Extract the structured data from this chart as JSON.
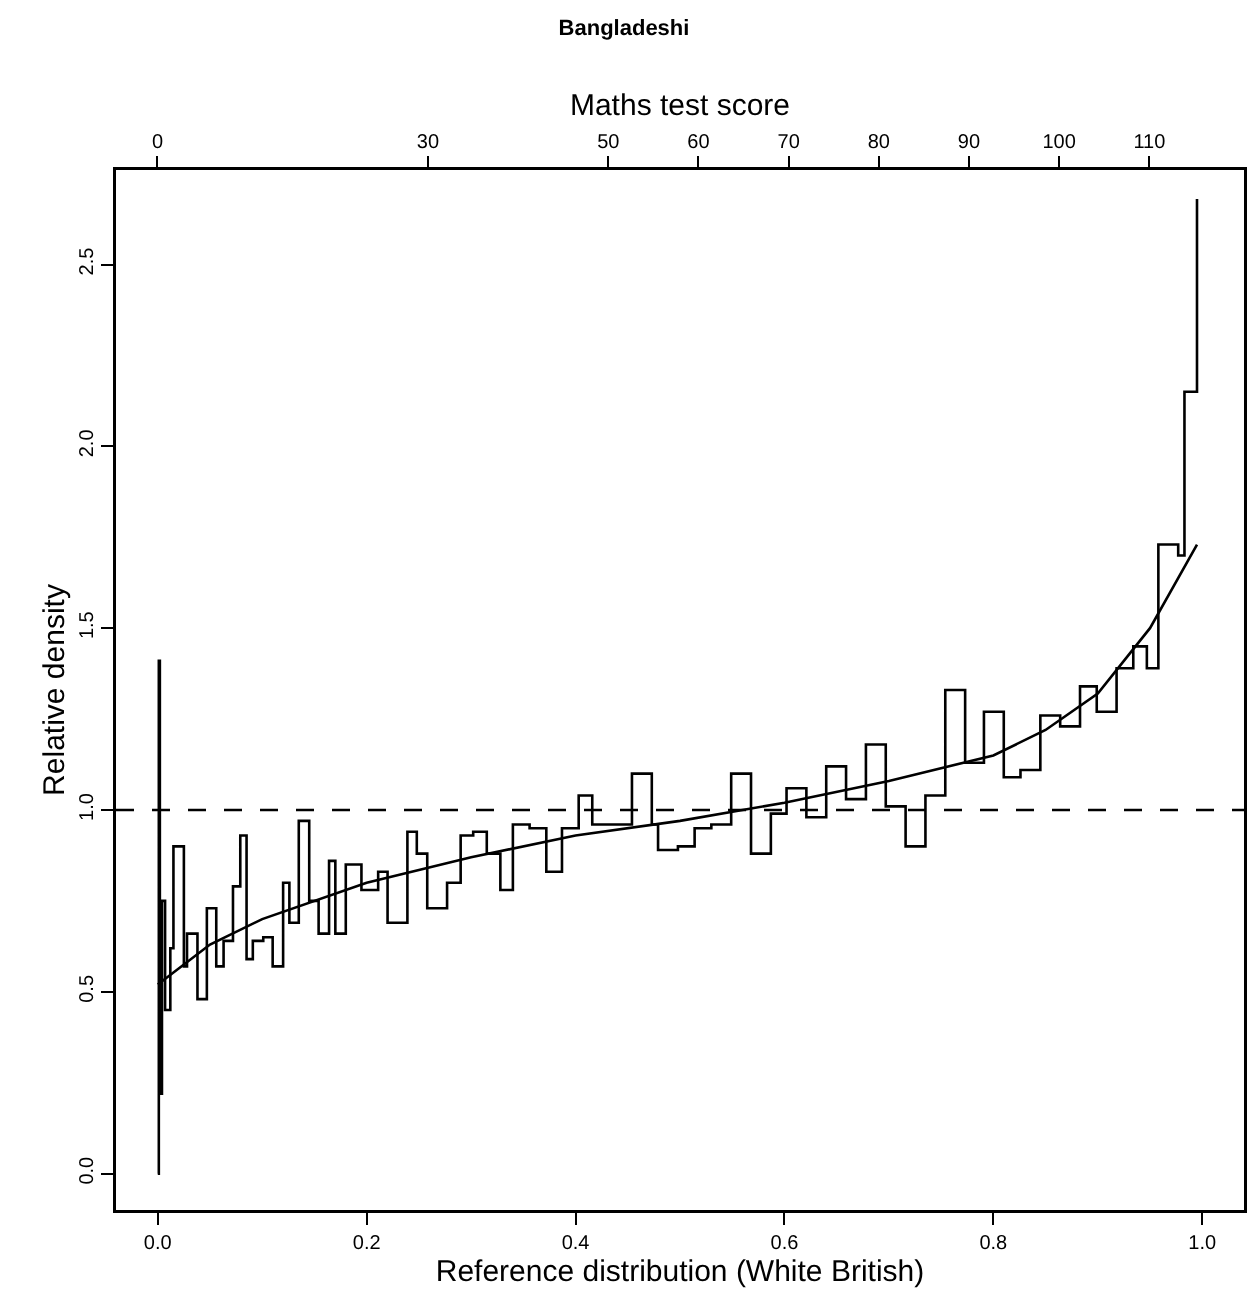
{
  "chart_data": {
    "type": "line",
    "title": "Bangladeshi",
    "xlabel": "Reference distribution (White British)",
    "ylabel": "Relative density",
    "x2label": "Maths test score",
    "xlim": [
      -0.04,
      1.04
    ],
    "ylim": [
      -0.1,
      2.76
    ],
    "xticks": [
      {
        "value": 0,
        "label": "0.0"
      },
      {
        "value": 0.2,
        "label": "0.2"
      },
      {
        "value": 0.4,
        "label": "0.4"
      },
      {
        "value": 0.6,
        "label": "0.6"
      },
      {
        "value": 0.8,
        "label": "0.8"
      },
      {
        "value": 1,
        "label": "1.0"
      }
    ],
    "yticks": [
      {
        "value": 0,
        "label": "0.0"
      },
      {
        "value": 0.5,
        "label": "0.5"
      },
      {
        "value": 1,
        "label": "1.0"
      },
      {
        "value": 1.5,
        "label": "1.5"
      },
      {
        "value": 2,
        "label": "2.0"
      },
      {
        "value": 2.5,
        "label": "2.5"
      }
    ],
    "x2lim": [
      -4.6,
      120.5
    ],
    "x2ticks": [
      0,
      30,
      50,
      60,
      70,
      80,
      90,
      100,
      110
    ],
    "grid": false,
    "series": [
      {
        "type": "step",
        "color": "#000000",
        "x": [
          0,
          0.001,
          0.002,
          0.004,
          0.007,
          0.012,
          0.015,
          0.025,
          0.028,
          0.038,
          0.047,
          0.056,
          0.063,
          0.072,
          0.079,
          0.085,
          0.091,
          0.101,
          0.11,
          0.12,
          0.126,
          0.135,
          0.145,
          0.154,
          0.164,
          0.17,
          0.18,
          0.195,
          0.211,
          0.22,
          0.239,
          0.248,
          0.258,
          0.277,
          0.29,
          0.302,
          0.315,
          0.328,
          0.34,
          0.356,
          0.372,
          0.387,
          0.403,
          0.416,
          0.441,
          0.454,
          0.473,
          0.479,
          0.498,
          0.514,
          0.53,
          0.549,
          0.568,
          0.587,
          0.602,
          0.621,
          0.64,
          0.659,
          0.678,
          0.697,
          0.716,
          0.735,
          0.754,
          0.773,
          0.791,
          0.81,
          0.826,
          0.845,
          0.864,
          0.883,
          0.899,
          0.918,
          0.934,
          0.947,
          0.958,
          0.977,
          0.983,
          0.995
        ],
        "values": [
          0,
          1.41,
          0.22,
          0.75,
          0.45,
          0.62,
          0.9,
          0.57,
          0.66,
          0.48,
          0.73,
          0.57,
          0.64,
          0.79,
          0.93,
          0.59,
          0.64,
          0.65,
          0.57,
          0.8,
          0.69,
          0.97,
          0.75,
          0.66,
          0.86,
          0.66,
          0.85,
          0.78,
          0.83,
          0.69,
          0.94,
          0.88,
          0.73,
          0.8,
          0.93,
          0.94,
          0.88,
          0.78,
          0.96,
          0.95,
          0.83,
          0.95,
          1.04,
          0.96,
          0.96,
          1.1,
          0.96,
          0.89,
          0.9,
          0.95,
          0.96,
          1.1,
          0.88,
          0.99,
          1.06,
          0.98,
          1.12,
          1.03,
          1.18,
          1.01,
          0.9,
          1.04,
          1.33,
          1.13,
          1.27,
          1.09,
          1.11,
          1.26,
          1.23,
          1.34,
          1.27,
          1.39,
          1.45,
          1.39,
          1.73,
          1.7,
          2.15,
          2.68
        ]
      },
      {
        "type": "line",
        "color": "#000000",
        "x": [
          0,
          0.05,
          0.1,
          0.2,
          0.3,
          0.4,
          0.5,
          0.6,
          0.7,
          0.8,
          0.85,
          0.9,
          0.95,
          0.995
        ],
        "values": [
          0.52,
          0.63,
          0.7,
          0.8,
          0.87,
          0.93,
          0.97,
          1.02,
          1.08,
          1.15,
          1.22,
          1.32,
          1.5,
          1.73
        ]
      }
    ],
    "ref_lines": [
      {
        "axis": "y",
        "value": 1,
        "color": "#000000",
        "line_style": "dashed"
      }
    ]
  }
}
